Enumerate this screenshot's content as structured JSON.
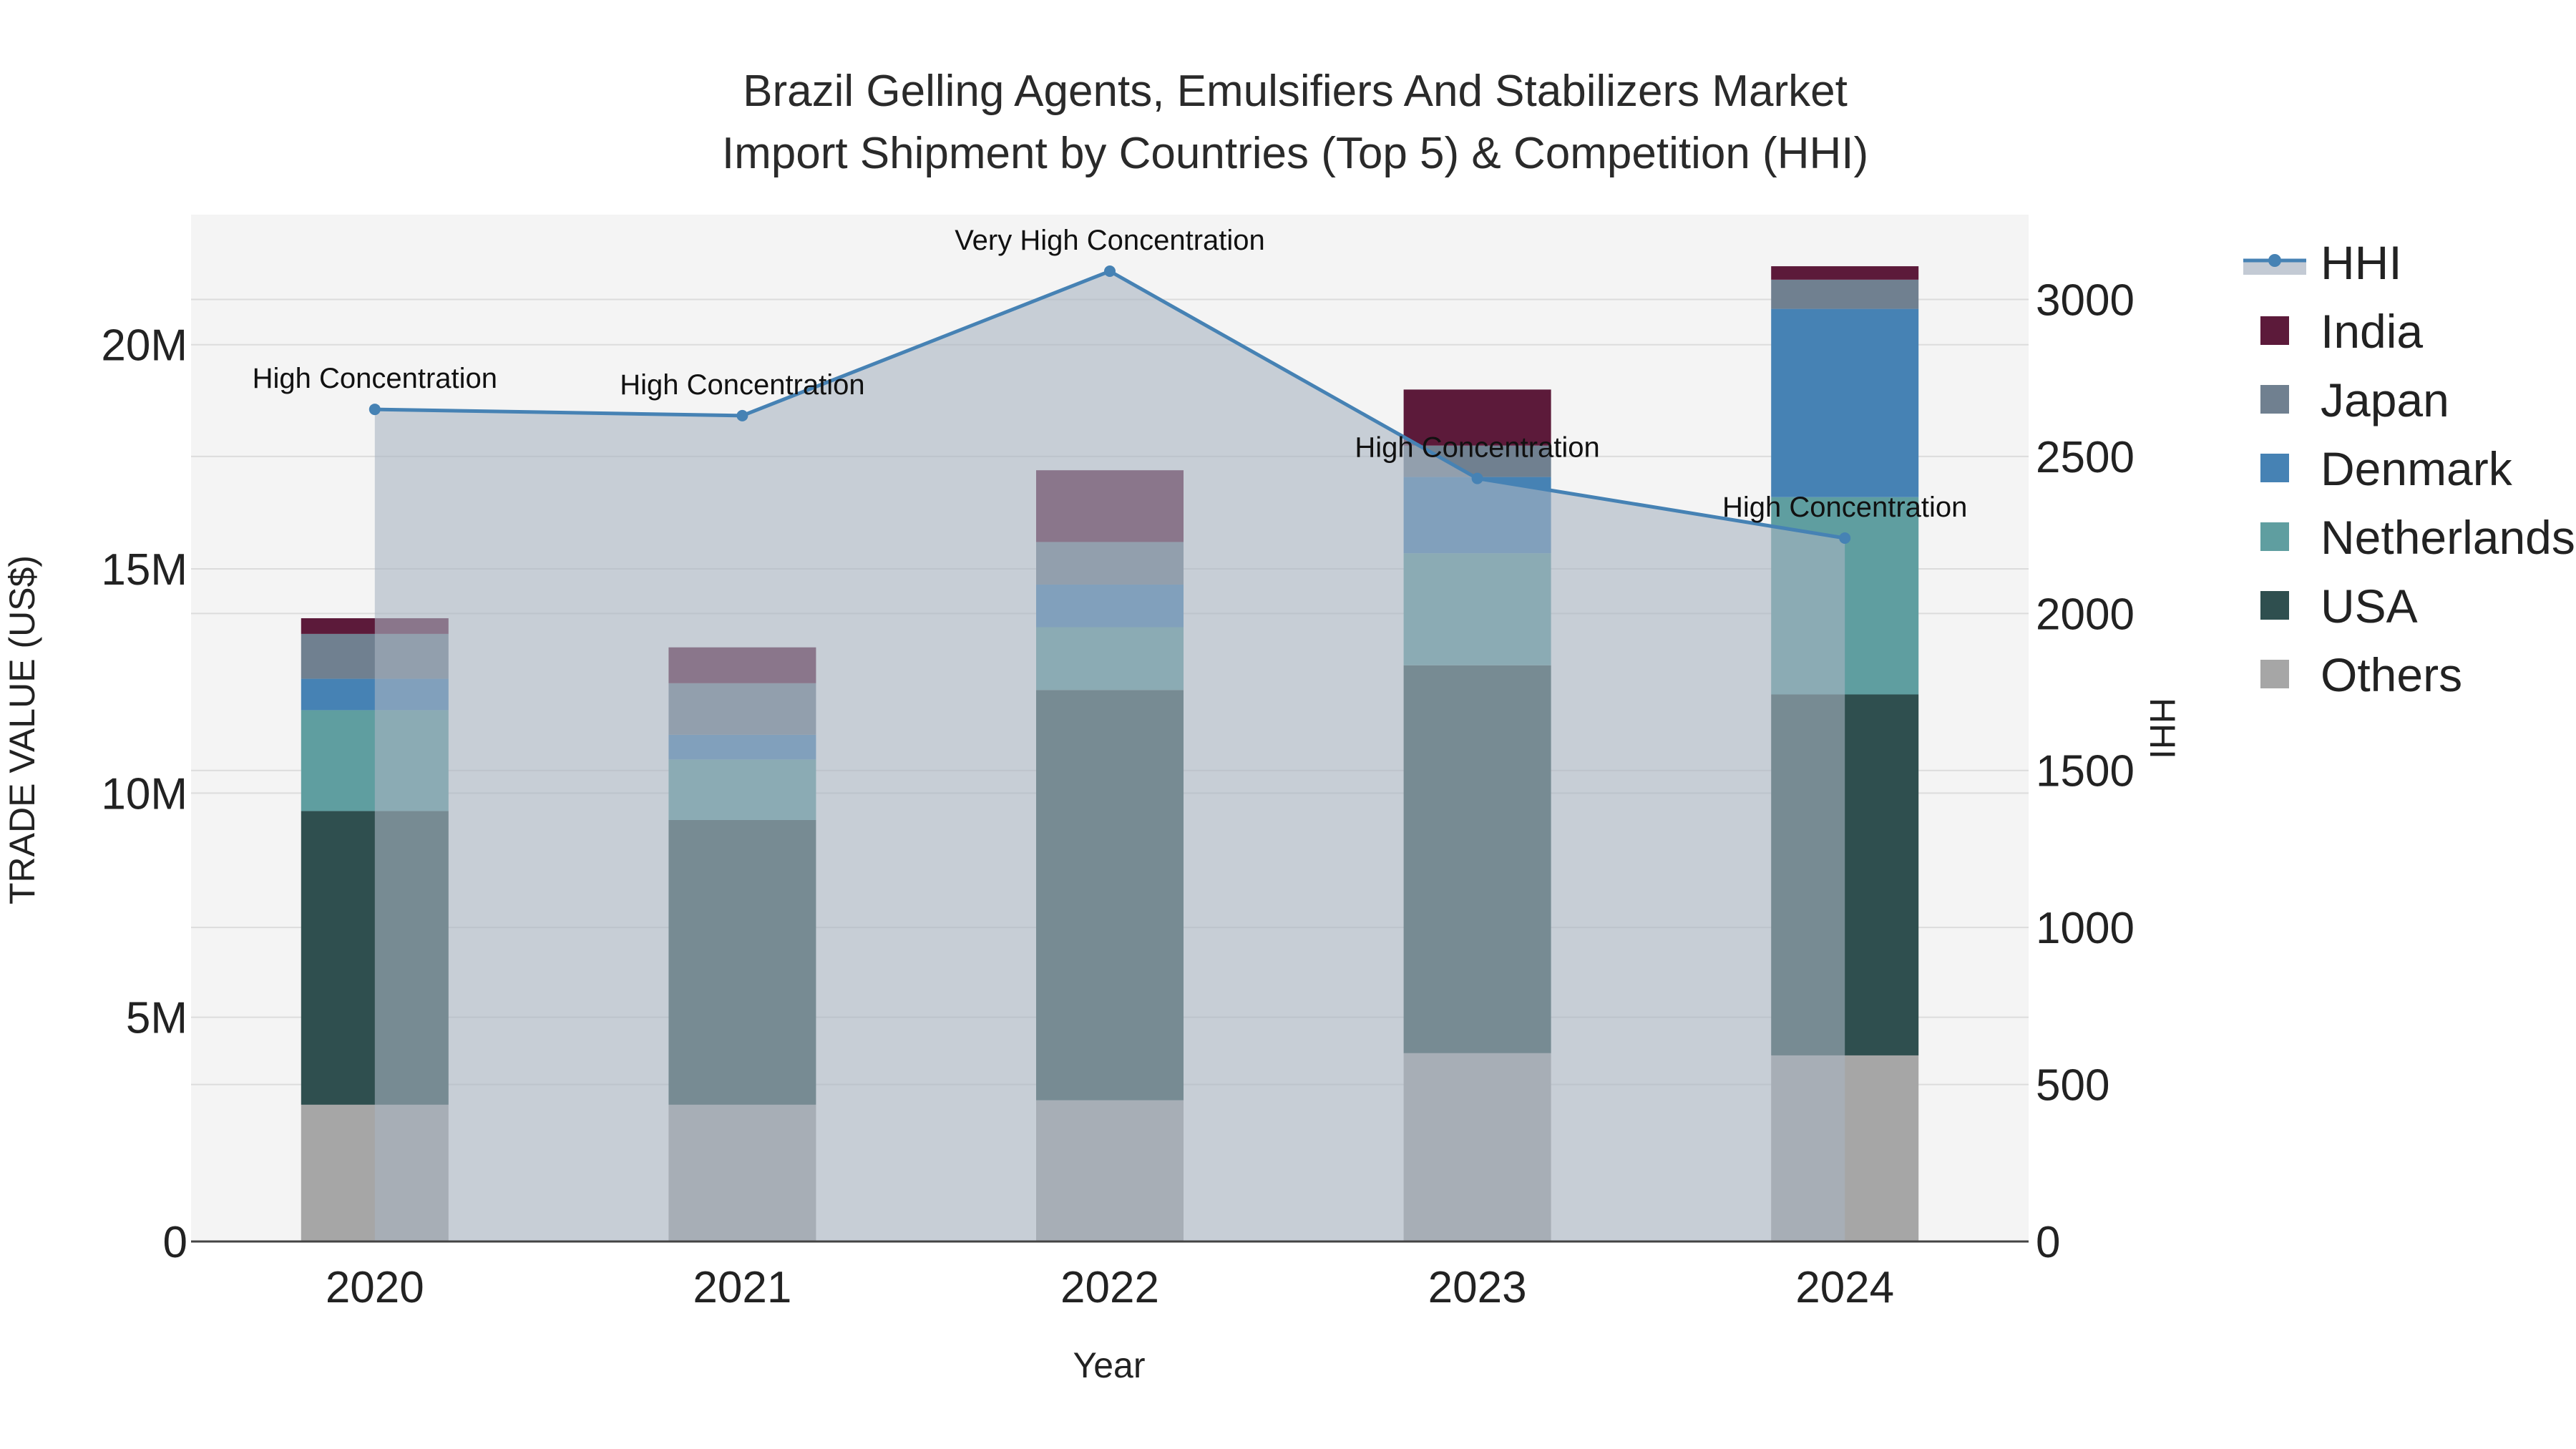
{
  "chart_data": {
    "type": "bar",
    "title_lines": [
      "Brazil Gelling Agents, Emulsifiers And Stabilizers Market",
      "Import Shipment by Countries (Top 5) & Competition (HHI)"
    ],
    "xlabel": "Year",
    "ylabel": "TRADE VALUE (US$)",
    "y2label": "HHI",
    "categories": [
      "2020",
      "2021",
      "2022",
      "2023",
      "2024"
    ],
    "ylim": [
      0,
      22900000
    ],
    "y2lim": [
      0,
      3270
    ],
    "yticks": [
      {
        "value": 0,
        "label": "0"
      },
      {
        "value": 5000000,
        "label": "5M"
      },
      {
        "value": 10000000,
        "label": "10M"
      },
      {
        "value": 15000000,
        "label": "15M"
      },
      {
        "value": 20000000,
        "label": "20M"
      }
    ],
    "y2ticks": [
      {
        "value": 0,
        "label": "0"
      },
      {
        "value": 500,
        "label": "500"
      },
      {
        "value": 1000,
        "label": "1000"
      },
      {
        "value": 1500,
        "label": "1500"
      },
      {
        "value": 2000,
        "label": "2000"
      },
      {
        "value": 2500,
        "label": "2500"
      },
      {
        "value": 3000,
        "label": "3000"
      }
    ],
    "stack_order": [
      "Others",
      "USA",
      "Netherlands",
      "Denmark",
      "Japan",
      "India"
    ],
    "series": [
      {
        "name": "Others",
        "color": "#a6a6a6",
        "values": [
          3050000,
          3050000,
          3150000,
          4200000,
          4150000
        ]
      },
      {
        "name": "USA",
        "color": "#2f4f4f",
        "values": [
          6550000,
          6350000,
          9150000,
          8650000,
          8050000
        ]
      },
      {
        "name": "Netherlands",
        "color": "#5f9ea0",
        "values": [
          2250000,
          1350000,
          1400000,
          2500000,
          4400000
        ]
      },
      {
        "name": "Denmark",
        "color": "#4682b4",
        "values": [
          700000,
          550000,
          950000,
          1700000,
          4200000
        ]
      },
      {
        "name": "Japan",
        "color": "#708090",
        "values": [
          1000000,
          1150000,
          950000,
          700000,
          650000
        ]
      },
      {
        "name": "India",
        "color": "#5c1a3a",
        "values": [
          350000,
          800000,
          1600000,
          1250000,
          300000
        ]
      }
    ],
    "hhi": {
      "name": "HHI",
      "color": "#4682b4",
      "fill_color": "#a9b4c2",
      "values": [
        2650,
        2630,
        3090,
        2430,
        2240
      ],
      "annotations": [
        "High Concentration",
        "High Concentration",
        "Very High Concentration",
        "High Concentration",
        "High Concentration"
      ]
    },
    "legend_order": [
      "HHI",
      "India",
      "Japan",
      "Denmark",
      "Netherlands",
      "USA",
      "Others"
    ]
  }
}
